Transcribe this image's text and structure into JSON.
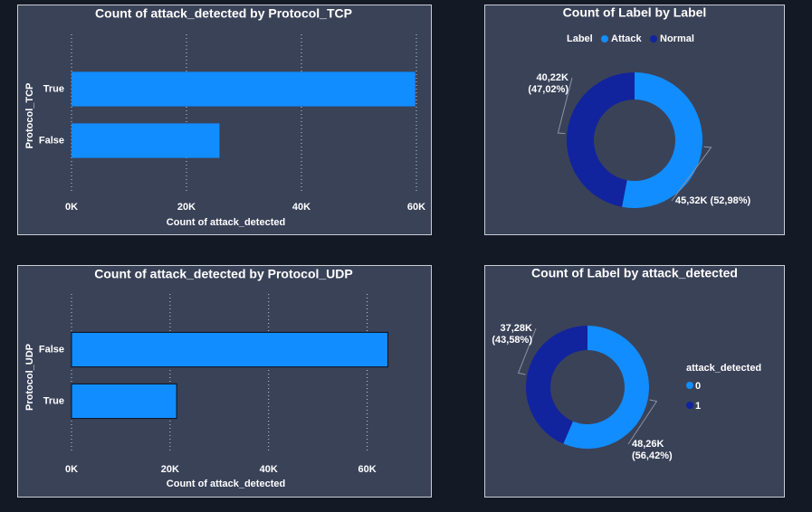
{
  "chart_data": [
    {
      "type": "bar",
      "title": "Count of attack_detected by Protocol_TCP",
      "x_label": "Count of attack_detected",
      "y_label": "Protocol_TCP",
      "categories": [
        "True",
        "False"
      ],
      "values": [
        59800,
        25740
      ],
      "color": "#118dff",
      "xlim": [
        0,
        60000
      ],
      "xticks": [
        {
          "value": 0,
          "label": "0K"
        },
        {
          "value": 20000,
          "label": "20K"
        },
        {
          "value": 40000,
          "label": "40K"
        },
        {
          "value": 60000,
          "label": "60K"
        }
      ],
      "grid": true
    },
    {
      "type": "donut",
      "title": "Count of Label by Label",
      "legend_title": "Label",
      "categories": [
        "Attack",
        "Normal"
      ],
      "values": [
        45320,
        40220
      ],
      "value_labels": [
        "45,32K (52,98%)",
        "40,22K (47,02%)"
      ],
      "colors": [
        "#118dff",
        "#12239e"
      ],
      "legend": "top"
    },
    {
      "type": "bar",
      "title": "Count of attack_detected by Protocol_UDP",
      "x_label": "Count of attack_detected",
      "y_label": "Protocol_UDP",
      "categories": [
        "False",
        "True"
      ],
      "values": [
        64200,
        21340
      ],
      "color": "#118dff",
      "xlim": [
        0,
        70000
      ],
      "xticks": [
        {
          "value": 0,
          "label": "0K"
        },
        {
          "value": 20000,
          "label": "20K"
        },
        {
          "value": 40000,
          "label": "40K"
        },
        {
          "value": 60000,
          "label": "60K"
        }
      ],
      "grid": true
    },
    {
      "type": "donut",
      "title": "Count of Label by attack_detected",
      "legend_title": "attack_detected",
      "categories": [
        "0",
        "1"
      ],
      "values": [
        48260,
        37280
      ],
      "value_labels": [
        "48,26K (56,42%)",
        "37,28K (43,58%)"
      ],
      "colors": [
        "#118dff",
        "#12239e"
      ],
      "legend": "right"
    }
  ]
}
